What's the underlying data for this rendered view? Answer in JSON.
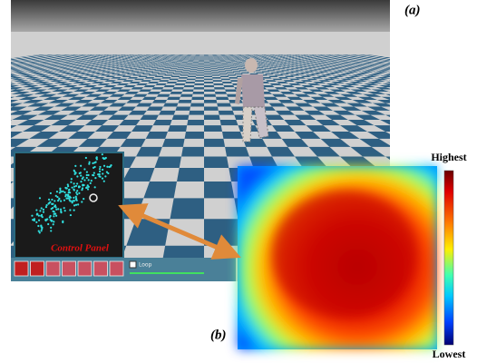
{
  "labels": {
    "a": "(a)",
    "b": "(b)"
  },
  "control_panel": {
    "title": "Control Panel",
    "loop": "Loop"
  },
  "colorbar": {
    "high": "Highest",
    "low": "Lowest"
  }
}
